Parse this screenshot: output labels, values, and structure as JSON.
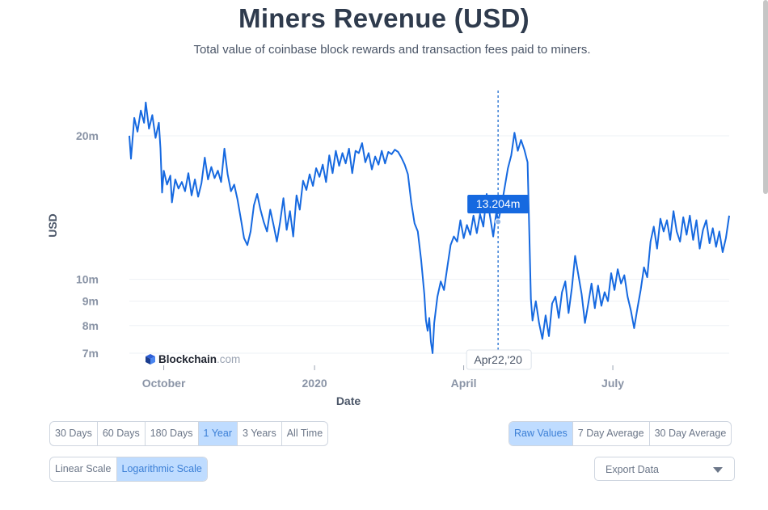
{
  "header": {
    "title": "Miners Revenue (USD)",
    "subtitle": "Total value of coinbase block rewards and transaction fees paid to miners."
  },
  "watermark": {
    "brand_bold": "Blockchain",
    "brand_suffix": ".com",
    "icon": "blockchain-cube-icon"
  },
  "tooltip": {
    "value": "13.204m",
    "date": "Apr22,'20"
  },
  "timespan_buttons": [
    {
      "label": "30 Days",
      "active": false
    },
    {
      "label": "60 Days",
      "active": false
    },
    {
      "label": "180 Days",
      "active": false
    },
    {
      "label": "1 Year",
      "active": true
    },
    {
      "label": "3 Years",
      "active": false
    },
    {
      "label": "All Time",
      "active": false
    }
  ],
  "scale_buttons": [
    {
      "label": "Linear Scale",
      "active": false
    },
    {
      "label": "Logarithmic Scale",
      "active": true
    }
  ],
  "average_buttons": [
    {
      "label": "Raw Values",
      "active": true
    },
    {
      "label": "7 Day Average",
      "active": false
    },
    {
      "label": "30 Day Average",
      "active": false
    }
  ],
  "export": {
    "label": "Export Data",
    "icon": "chevron-down-icon"
  },
  "colors": {
    "line": "#1669e0",
    "tooltip_bg": "#1669e0",
    "active_button": "#bfdcff",
    "active_text": "#3b7fd6"
  },
  "chart_data": {
    "type": "line",
    "title": "Miners Revenue (USD)",
    "subtitle": "Total value of coinbase block rewards and transaction fees paid to miners.",
    "xlabel": "Date",
    "ylabel": "USD",
    "yscale": "log",
    "ylim": [
      6800000,
      25000000
    ],
    "xlim": [
      "2019-09-10",
      "2020-09-10"
    ],
    "grid": {
      "horizontal": true,
      "vertical": false
    },
    "y_ticks": [
      {
        "value": 7000000,
        "label": "7m"
      },
      {
        "value": 8000000,
        "label": "8m"
      },
      {
        "value": 9000000,
        "label": "9m"
      },
      {
        "value": 10000000,
        "label": "10m"
      },
      {
        "value": 20000000,
        "label": "20m"
      }
    ],
    "x_ticks": [
      {
        "date": "2019-10-01",
        "label": "October"
      },
      {
        "date": "2020-01-01",
        "label": "2020"
      },
      {
        "date": "2020-04-01",
        "label": "April"
      },
      {
        "date": "2020-07-01",
        "label": "July"
      }
    ],
    "highlight": {
      "date": "2020-04-22",
      "value": 13204000,
      "label": "13.204m"
    },
    "series": [
      {
        "points": [
          [
            "2019-09-10",
            20.0
          ],
          [
            "2019-09-11",
            17.9
          ],
          [
            "2019-09-13",
            21.8
          ],
          [
            "2019-09-15",
            20.4
          ],
          [
            "2019-09-17",
            22.6
          ],
          [
            "2019-09-19",
            21.3
          ],
          [
            "2019-09-20",
            23.5
          ],
          [
            "2019-09-22",
            20.7
          ],
          [
            "2019-09-24",
            22.1
          ],
          [
            "2019-09-26",
            19.8
          ],
          [
            "2019-09-28",
            21.3
          ],
          [
            "2019-09-29",
            18.8
          ],
          [
            "2019-09-30",
            15.2
          ],
          [
            "2019-10-01",
            16.9
          ],
          [
            "2019-10-03",
            15.8
          ],
          [
            "2019-10-05",
            16.5
          ],
          [
            "2019-10-06",
            14.5
          ],
          [
            "2019-10-08",
            16.2
          ],
          [
            "2019-10-10",
            15.5
          ],
          [
            "2019-10-12",
            16.0
          ],
          [
            "2019-10-14",
            15.3
          ],
          [
            "2019-10-16",
            16.7
          ],
          [
            "2019-10-18",
            15.0
          ],
          [
            "2019-10-20",
            16.2
          ],
          [
            "2019-10-22",
            14.9
          ],
          [
            "2019-10-24",
            15.9
          ],
          [
            "2019-10-26",
            18.0
          ],
          [
            "2019-10-28",
            16.2
          ],
          [
            "2019-10-30",
            17.2
          ],
          [
            "2019-11-01",
            16.3
          ],
          [
            "2019-11-03",
            16.9
          ],
          [
            "2019-11-05",
            16.0
          ],
          [
            "2019-11-07",
            18.8
          ],
          [
            "2019-11-09",
            16.6
          ],
          [
            "2019-11-11",
            15.3
          ],
          [
            "2019-11-13",
            15.8
          ],
          [
            "2019-11-15",
            14.7
          ],
          [
            "2019-11-17",
            13.4
          ],
          [
            "2019-11-19",
            12.2
          ],
          [
            "2019-11-21",
            11.8
          ],
          [
            "2019-11-23",
            12.6
          ],
          [
            "2019-11-25",
            14.3
          ],
          [
            "2019-11-27",
            15.1
          ],
          [
            "2019-11-29",
            14.0
          ],
          [
            "2019-12-01",
            13.2
          ],
          [
            "2019-12-03",
            12.6
          ],
          [
            "2019-12-05",
            14.0
          ],
          [
            "2019-12-07",
            13.0
          ],
          [
            "2019-12-09",
            12.0
          ],
          [
            "2019-12-11",
            13.2
          ],
          [
            "2019-12-13",
            14.8
          ],
          [
            "2019-12-15",
            12.7
          ],
          [
            "2019-12-17",
            13.9
          ],
          [
            "2019-12-19",
            12.3
          ],
          [
            "2019-12-21",
            15.0
          ],
          [
            "2019-12-23",
            14.0
          ],
          [
            "2019-12-25",
            16.1
          ],
          [
            "2019-12-27",
            15.4
          ],
          [
            "2019-12-29",
            16.6
          ],
          [
            "2019-12-31",
            15.7
          ],
          [
            "2020-01-02",
            17.1
          ],
          [
            "2020-01-04",
            16.4
          ],
          [
            "2020-01-06",
            17.4
          ],
          [
            "2020-01-08",
            16.0
          ],
          [
            "2020-01-10",
            18.2
          ],
          [
            "2020-01-12",
            16.7
          ],
          [
            "2020-01-14",
            18.6
          ],
          [
            "2020-01-16",
            17.3
          ],
          [
            "2020-01-18",
            18.4
          ],
          [
            "2020-01-20",
            17.5
          ],
          [
            "2020-01-22",
            18.8
          ],
          [
            "2020-01-24",
            16.7
          ],
          [
            "2020-01-26",
            18.6
          ],
          [
            "2020-01-28",
            18.4
          ],
          [
            "2020-01-30",
            19.3
          ],
          [
            "2020-02-01",
            17.6
          ],
          [
            "2020-02-03",
            18.4
          ],
          [
            "2020-02-05",
            17.0
          ],
          [
            "2020-02-07",
            18.1
          ],
          [
            "2020-02-09",
            17.4
          ],
          [
            "2020-02-11",
            18.6
          ],
          [
            "2020-02-13",
            17.5
          ],
          [
            "2020-02-15",
            18.5
          ],
          [
            "2020-02-17",
            18.3
          ],
          [
            "2020-02-19",
            18.7
          ],
          [
            "2020-02-21",
            18.5
          ],
          [
            "2020-02-23",
            18.0
          ],
          [
            "2020-02-25",
            17.4
          ],
          [
            "2020-02-27",
            16.6
          ],
          [
            "2020-02-29",
            14.5
          ],
          [
            "2020-03-02",
            13.1
          ],
          [
            "2020-03-04",
            12.6
          ],
          [
            "2020-03-06",
            11.0
          ],
          [
            "2020-03-08",
            9.3
          ],
          [
            "2020-03-09",
            8.2
          ],
          [
            "2020-03-10",
            7.8
          ],
          [
            "2020-03-11",
            8.3
          ],
          [
            "2020-03-12",
            7.4
          ],
          [
            "2020-03-13",
            7.0
          ],
          [
            "2020-03-14",
            8.1
          ],
          [
            "2020-03-16",
            9.2
          ],
          [
            "2020-03-18",
            9.9
          ],
          [
            "2020-03-20",
            9.5
          ],
          [
            "2020-03-22",
            10.6
          ],
          [
            "2020-03-24",
            11.8
          ],
          [
            "2020-03-26",
            12.3
          ],
          [
            "2020-03-28",
            12.0
          ],
          [
            "2020-03-30",
            13.3
          ],
          [
            "2020-04-01",
            12.2
          ],
          [
            "2020-04-03",
            13.0
          ],
          [
            "2020-04-05",
            12.4
          ],
          [
            "2020-04-07",
            13.6
          ],
          [
            "2020-04-09",
            12.5
          ],
          [
            "2020-04-11",
            13.7
          ],
          [
            "2020-04-13",
            12.9
          ],
          [
            "2020-04-15",
            15.1
          ],
          [
            "2020-04-17",
            13.6
          ],
          [
            "2020-04-19",
            12.3
          ],
          [
            "2020-04-21",
            13.9
          ],
          [
            "2020-04-22",
            13.2
          ],
          [
            "2020-04-24",
            14.2
          ],
          [
            "2020-04-26",
            15.6
          ],
          [
            "2020-04-28",
            17.1
          ],
          [
            "2020-04-30",
            18.2
          ],
          [
            "2020-05-02",
            20.3
          ],
          [
            "2020-05-04",
            18.6
          ],
          [
            "2020-05-06",
            19.6
          ],
          [
            "2020-05-08",
            18.7
          ],
          [
            "2020-05-10",
            17.6
          ],
          [
            "2020-05-11",
            12.6
          ],
          [
            "2020-05-12",
            9.1
          ],
          [
            "2020-05-13",
            8.2
          ],
          [
            "2020-05-15",
            9.0
          ],
          [
            "2020-05-17",
            8.1
          ],
          [
            "2020-05-19",
            7.5
          ],
          [
            "2020-05-21",
            8.4
          ],
          [
            "2020-05-23",
            7.6
          ],
          [
            "2020-05-25",
            8.9
          ],
          [
            "2020-05-27",
            9.2
          ],
          [
            "2020-05-29",
            8.3
          ],
          [
            "2020-05-31",
            9.4
          ],
          [
            "2020-06-02",
            9.9
          ],
          [
            "2020-06-04",
            8.5
          ],
          [
            "2020-06-06",
            9.6
          ],
          [
            "2020-06-08",
            11.2
          ],
          [
            "2020-06-10",
            10.2
          ],
          [
            "2020-06-12",
            9.3
          ],
          [
            "2020-06-14",
            8.1
          ],
          [
            "2020-06-16",
            8.9
          ],
          [
            "2020-06-18",
            9.8
          ],
          [
            "2020-06-20",
            8.7
          ],
          [
            "2020-06-22",
            9.7
          ],
          [
            "2020-06-24",
            8.8
          ],
          [
            "2020-06-26",
            9.4
          ],
          [
            "2020-06-28",
            9.0
          ],
          [
            "2020-06-30",
            10.3
          ],
          [
            "2020-07-02",
            9.5
          ],
          [
            "2020-07-04",
            10.5
          ],
          [
            "2020-07-06",
            9.8
          ],
          [
            "2020-07-08",
            10.2
          ],
          [
            "2020-07-10",
            9.2
          ],
          [
            "2020-07-12",
            8.6
          ],
          [
            "2020-07-14",
            7.9
          ],
          [
            "2020-07-16",
            8.7
          ],
          [
            "2020-07-18",
            9.5
          ],
          [
            "2020-07-20",
            10.6
          ],
          [
            "2020-07-22",
            10.1
          ],
          [
            "2020-07-24",
            12.0
          ],
          [
            "2020-07-26",
            12.9
          ],
          [
            "2020-07-28",
            11.6
          ],
          [
            "2020-07-30",
            13.4
          ],
          [
            "2020-08-01",
            12.6
          ],
          [
            "2020-08-03",
            13.3
          ],
          [
            "2020-08-05",
            12.1
          ],
          [
            "2020-08-07",
            13.9
          ],
          [
            "2020-08-09",
            12.6
          ],
          [
            "2020-08-11",
            12.0
          ],
          [
            "2020-08-13",
            13.5
          ],
          [
            "2020-08-15",
            12.4
          ],
          [
            "2020-08-17",
            13.6
          ],
          [
            "2020-08-19",
            12.1
          ],
          [
            "2020-08-21",
            13.3
          ],
          [
            "2020-08-23",
            11.6
          ],
          [
            "2020-08-25",
            12.7
          ],
          [
            "2020-08-27",
            13.3
          ],
          [
            "2020-08-29",
            11.9
          ],
          [
            "2020-08-31",
            12.8
          ],
          [
            "2020-09-02",
            11.7
          ],
          [
            "2020-09-04",
            12.6
          ],
          [
            "2020-09-06",
            11.4
          ],
          [
            "2020-09-08",
            12.2
          ],
          [
            "2020-09-10",
            13.6
          ]
        ]
      }
    ]
  }
}
